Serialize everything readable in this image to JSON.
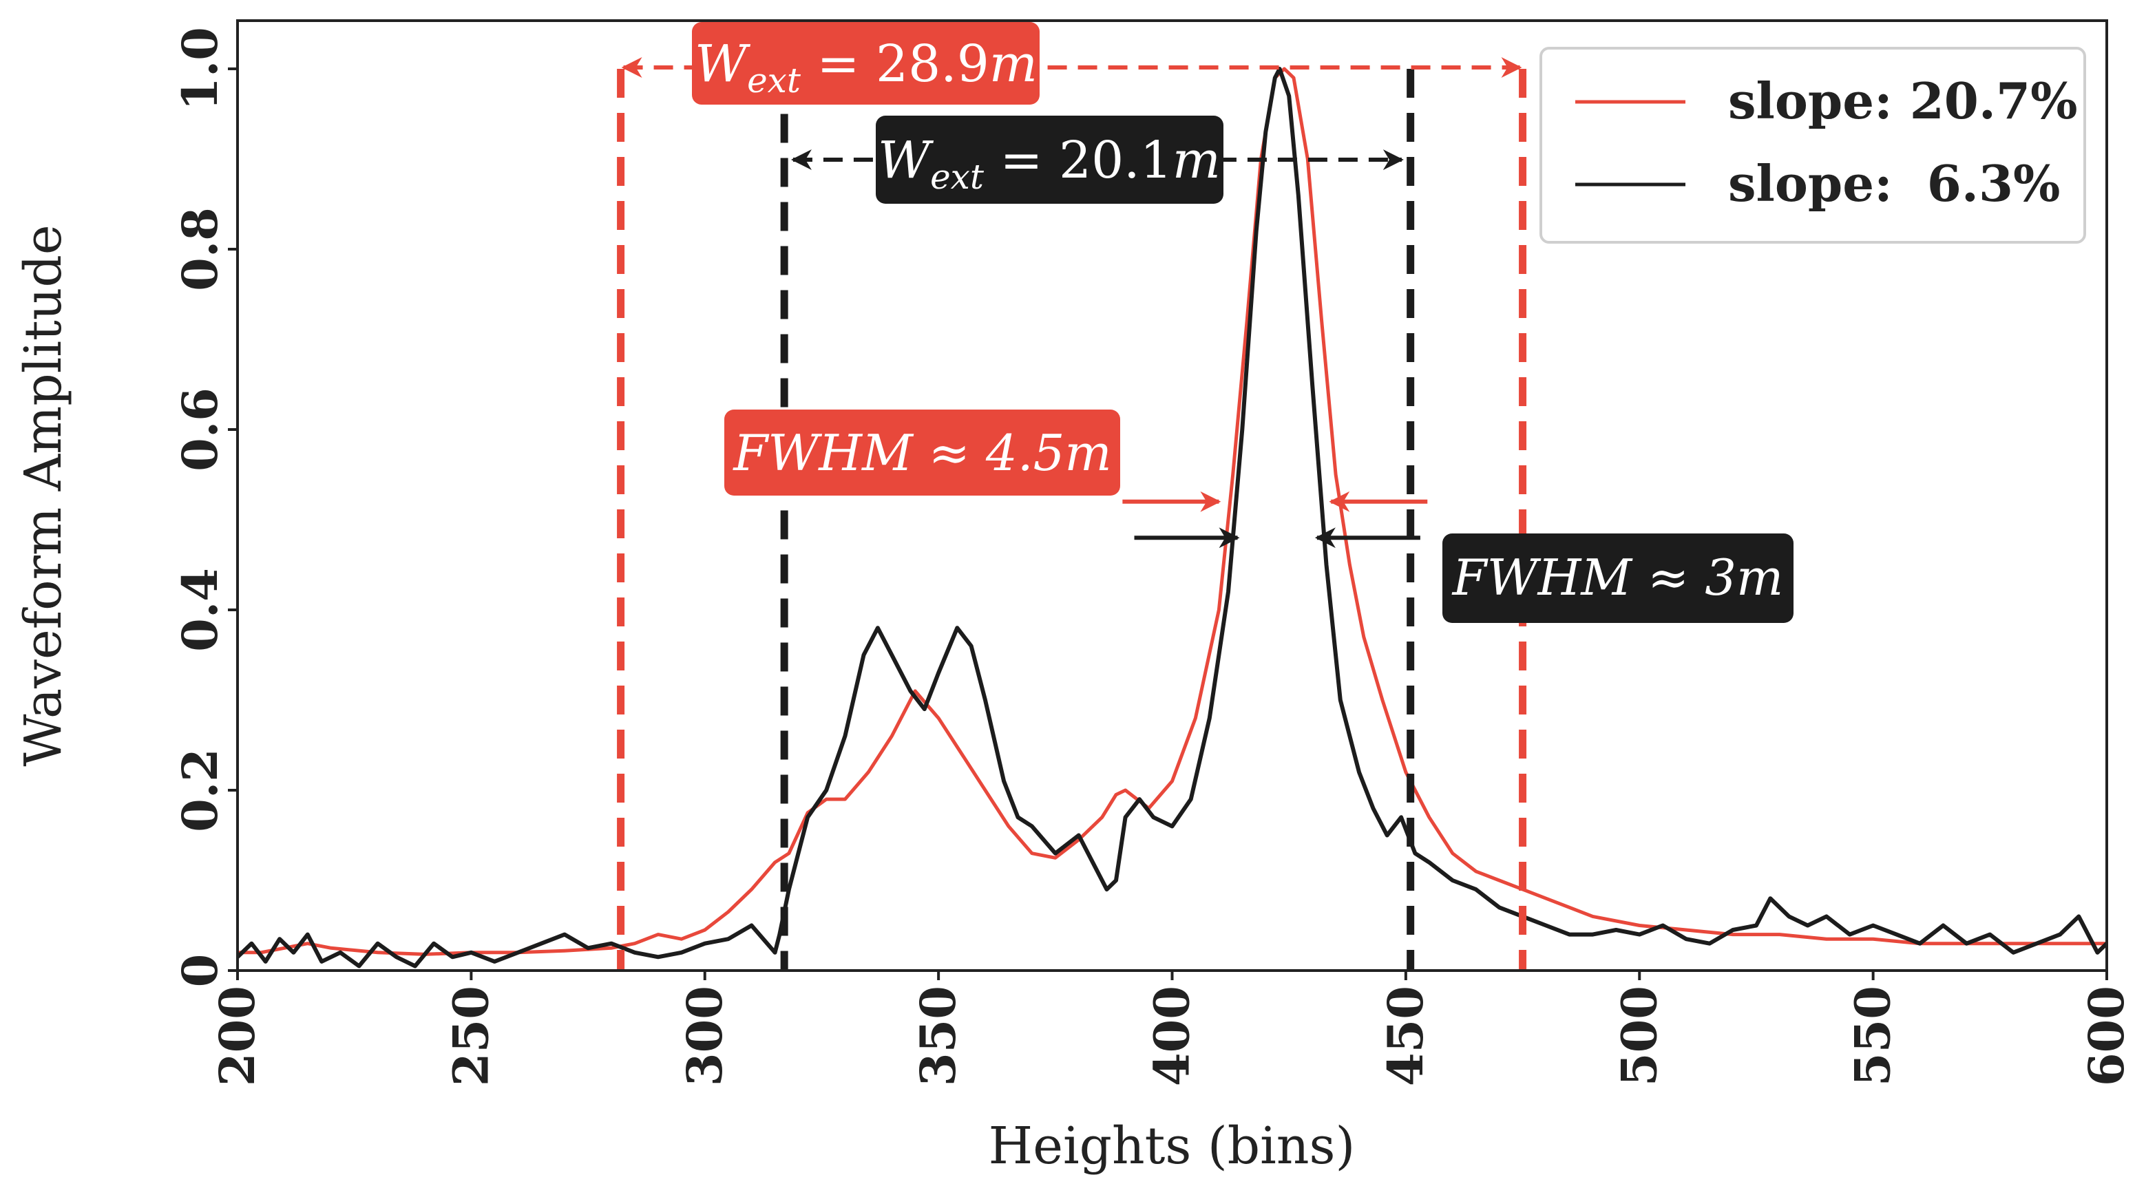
{
  "chart_data": {
    "type": "line",
    "xlabel": "Heights (bins)",
    "ylabel": "Waveform Amplitude",
    "xlim": [
      200,
      600
    ],
    "ylim": [
      0,
      1.0
    ],
    "x_ticks": [
      200,
      250,
      300,
      350,
      400,
      450,
      500,
      550,
      600
    ],
    "x_tick_labels": [
      "200",
      "250",
      "300",
      "350",
      "400",
      "450",
      "500",
      "550",
      "600"
    ],
    "y_ticks": [
      0,
      0.2,
      0.4,
      0.6,
      0.8,
      1.0
    ],
    "y_tick_labels": [
      "0",
      "0.2",
      "0.4",
      "0.6",
      "0.8",
      "1.0"
    ],
    "grid": false,
    "legend_position": "top-right",
    "colors": {
      "red": "#e8483b",
      "black": "#1c1c1c"
    },
    "series": [
      {
        "name": "slope: 20.7%",
        "color": "#e8483b",
        "x": [
          200,
          205,
          210,
          215,
          220,
          230,
          240,
          250,
          260,
          270,
          280,
          285,
          290,
          295,
          300,
          305,
          310,
          315,
          318,
          322,
          326,
          330,
          335,
          340,
          345,
          350,
          355,
          360,
          365,
          370,
          375,
          380,
          385,
          388,
          390,
          395,
          400,
          405,
          410,
          413,
          416,
          419,
          422,
          424,
          426,
          429,
          432,
          435,
          438,
          441,
          445,
          450,
          455,
          460,
          465,
          470,
          475,
          480,
          490,
          500,
          510,
          520,
          530,
          540,
          550,
          560,
          570,
          580,
          590,
          600
        ],
        "values": [
          0.02,
          0.02,
          0.025,
          0.03,
          0.025,
          0.02,
          0.018,
          0.02,
          0.02,
          0.022,
          0.025,
          0.03,
          0.04,
          0.035,
          0.045,
          0.065,
          0.09,
          0.12,
          0.13,
          0.175,
          0.19,
          0.19,
          0.22,
          0.26,
          0.31,
          0.28,
          0.24,
          0.2,
          0.16,
          0.13,
          0.125,
          0.145,
          0.17,
          0.195,
          0.2,
          0.18,
          0.21,
          0.28,
          0.4,
          0.55,
          0.72,
          0.9,
          0.99,
          1.0,
          0.99,
          0.9,
          0.72,
          0.55,
          0.45,
          0.37,
          0.3,
          0.22,
          0.17,
          0.13,
          0.11,
          0.1,
          0.09,
          0.08,
          0.06,
          0.05,
          0.045,
          0.04,
          0.04,
          0.035,
          0.035,
          0.03,
          0.03,
          0.03,
          0.03,
          0.03
        ]
      },
      {
        "name": "slope:  6.3%",
        "color": "#1c1c1c",
        "x": [
          200,
          203,
          206,
          209,
          212,
          215,
          218,
          222,
          226,
          230,
          234,
          238,
          242,
          246,
          250,
          255,
          260,
          265,
          270,
          275,
          280,
          285,
          290,
          295,
          300,
          305,
          310,
          315,
          316,
          318,
          322,
          326,
          330,
          334,
          337,
          340,
          344,
          347,
          350,
          354,
          357,
          360,
          364,
          367,
          370,
          375,
          380,
          383,
          386,
          388,
          390,
          393,
          396,
          400,
          404,
          408,
          412,
          415,
          418,
          420,
          422,
          423,
          425,
          427,
          430,
          433,
          436,
          440,
          443,
          446,
          449,
          452,
          455,
          460,
          465,
          470,
          475,
          480,
          485,
          490,
          495,
          500,
          505,
          510,
          515,
          520,
          525,
          528,
          532,
          536,
          540,
          545,
          550,
          555,
          560,
          565,
          570,
          575,
          580,
          585,
          590,
          594,
          598,
          600
        ],
        "values": [
          0.015,
          0.03,
          0.01,
          0.035,
          0.02,
          0.04,
          0.01,
          0.02,
          0.005,
          0.03,
          0.015,
          0.005,
          0.03,
          0.015,
          0.02,
          0.01,
          0.02,
          0.03,
          0.04,
          0.025,
          0.03,
          0.02,
          0.015,
          0.02,
          0.03,
          0.035,
          0.05,
          0.02,
          0.04,
          0.09,
          0.17,
          0.2,
          0.26,
          0.35,
          0.38,
          0.35,
          0.31,
          0.29,
          0.33,
          0.38,
          0.36,
          0.3,
          0.21,
          0.17,
          0.16,
          0.13,
          0.15,
          0.12,
          0.09,
          0.1,
          0.17,
          0.19,
          0.17,
          0.16,
          0.19,
          0.28,
          0.42,
          0.6,
          0.82,
          0.93,
          0.99,
          1.0,
          0.97,
          0.86,
          0.65,
          0.45,
          0.3,
          0.22,
          0.18,
          0.15,
          0.17,
          0.13,
          0.12,
          0.1,
          0.09,
          0.07,
          0.06,
          0.05,
          0.04,
          0.04,
          0.045,
          0.04,
          0.05,
          0.035,
          0.03,
          0.045,
          0.05,
          0.08,
          0.06,
          0.05,
          0.06,
          0.04,
          0.05,
          0.04,
          0.03,
          0.05,
          0.03,
          0.04,
          0.02,
          0.03,
          0.04,
          0.06,
          0.02,
          0.03
        ]
      }
    ],
    "vlines": [
      {
        "x": 282,
        "color": "#e8483b",
        "y_top": 1.0
      },
      {
        "x": 475,
        "color": "#e8483b",
        "y_top": 1.0
      },
      {
        "x": 317,
        "color": "#1c1c1c",
        "y_top": 0.95
      },
      {
        "x": 451,
        "color": "#1c1c1c",
        "y_top": 1.0
      }
    ],
    "annotations": {
      "red_wext": {
        "label": "W",
        "sub": "ext",
        "rest": " = 28.9",
        "unit": "m",
        "x1": 282,
        "x2": 475,
        "y": 1.0
      },
      "black_wext": {
        "label": "W",
        "sub": "ext",
        "rest": " = 20.1",
        "unit": "m",
        "x1": 318,
        "x2": 450,
        "y": 0.9
      },
      "red_fwhm": {
        "text": "FWHM ≈ 4.5",
        "unit": "m",
        "y": 0.52,
        "left_x": 410,
        "right_x": 434
      },
      "black_fwhm": {
        "text": "FWHM ≈ 3",
        "unit": "m",
        "y": 0.48,
        "left_x": 414,
        "right_x": 431
      }
    }
  }
}
